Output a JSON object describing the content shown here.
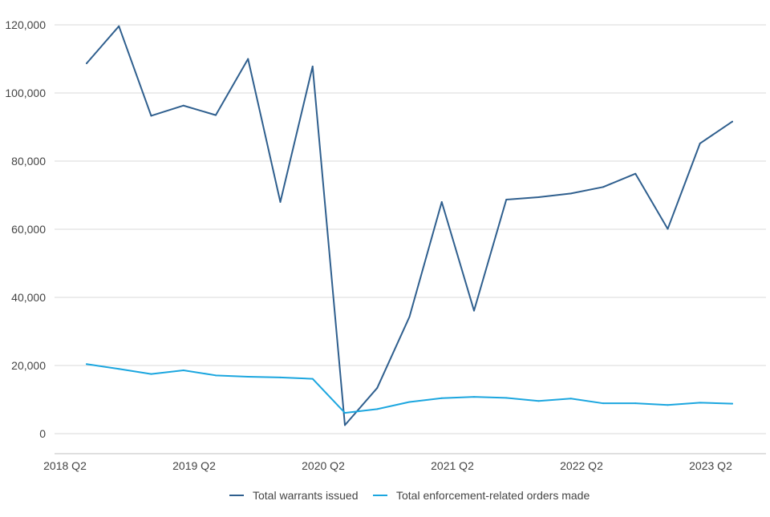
{
  "chart_data": {
    "type": "line",
    "title": "",
    "xlabel": "",
    "ylabel": "",
    "ylim": [
      0,
      120000
    ],
    "yticks": [
      0,
      20000,
      40000,
      60000,
      80000,
      100000,
      120000
    ],
    "ytick_labels": [
      "0",
      "20,000",
      "40,000",
      "60,000",
      "80,000",
      "100,000",
      "120,000"
    ],
    "x": [
      "2018 Q2",
      "2018 Q3",
      "2018 Q4",
      "2019 Q1",
      "2019 Q2",
      "2019 Q3",
      "2019 Q4",
      "2020 Q1",
      "2020 Q2",
      "2020 Q3",
      "2020 Q4",
      "2021 Q1",
      "2021 Q2",
      "2021 Q3",
      "2021 Q4",
      "2022 Q1",
      "2022 Q2",
      "2022 Q3",
      "2022 Q4",
      "2023 Q1",
      "2023 Q2"
    ],
    "xtick_labels": [
      "2018 Q2",
      "2019 Q2",
      "2020 Q2",
      "2021 Q2",
      "2022 Q2",
      "2023 Q2"
    ],
    "series": [
      {
        "name": "Total warrants issued",
        "color": "#2f5f8e",
        "values": [
          108700,
          119600,
          93300,
          96300,
          93500,
          110000,
          68000,
          107800,
          2500,
          13400,
          34300,
          68000,
          36100,
          68700,
          69400,
          70500,
          72400,
          76300,
          60100,
          85200,
          91600
        ]
      },
      {
        "name": "Total enforcement-related orders made",
        "color": "#1ba6df",
        "values": [
          20400,
          19000,
          17500,
          18600,
          17100,
          16700,
          16500,
          16100,
          6100,
          7200,
          9300,
          10400,
          10800,
          10500,
          9600,
          10300,
          8900,
          8900,
          8400,
          9100,
          8800
        ]
      }
    ],
    "grid": true,
    "legend_position": "bottom"
  }
}
